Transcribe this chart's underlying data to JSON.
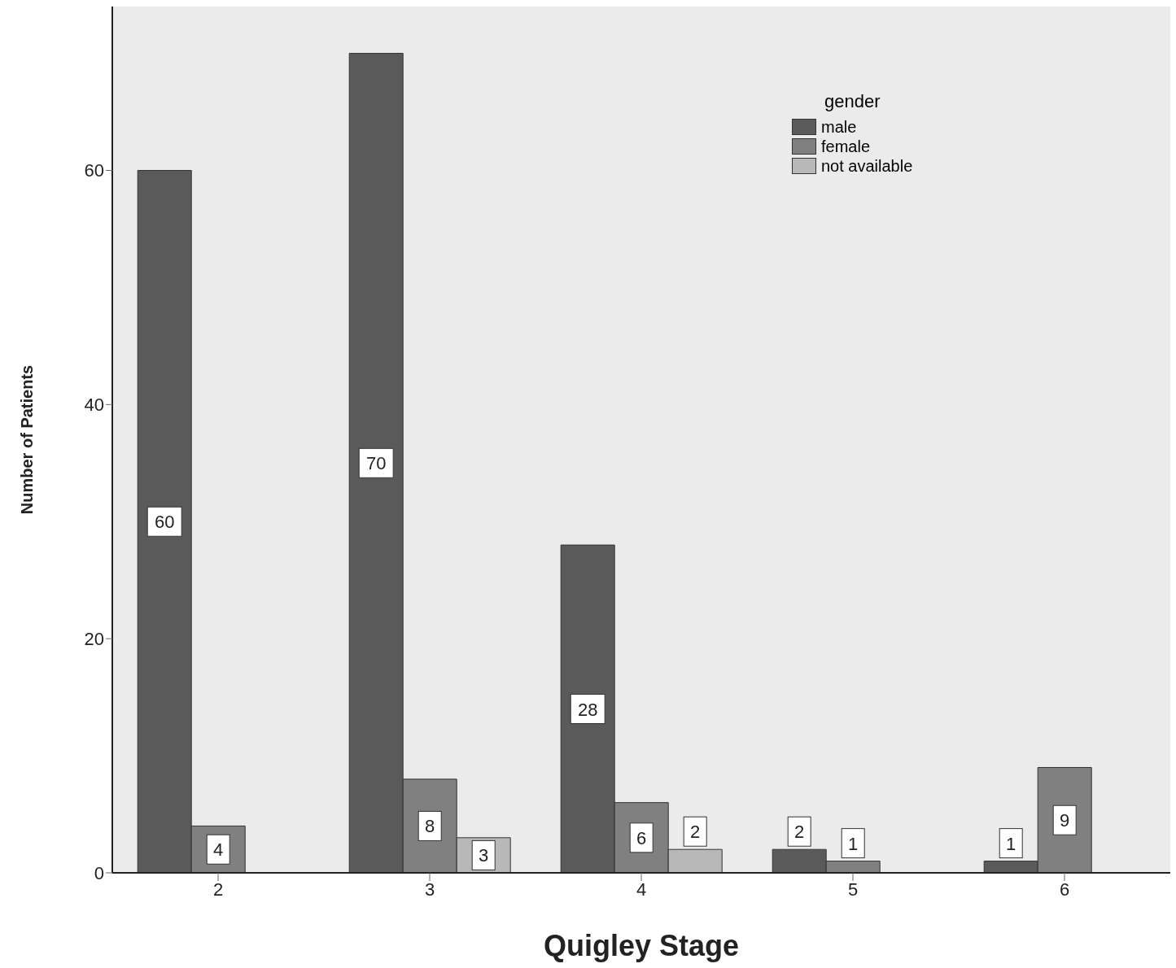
{
  "chart_data": {
    "type": "bar",
    "xlabel": "Quigley Stage",
    "ylabel": "Number of Patients",
    "legend_title": "gender",
    "categories": [
      "2",
      "3",
      "4",
      "5",
      "6"
    ],
    "series": [
      {
        "name": "male",
        "color": "#5a5a5a",
        "values": [
          60,
          70,
          28,
          2,
          1
        ]
      },
      {
        "name": "female",
        "color": "#808080",
        "values": [
          4,
          8,
          6,
          1,
          9
        ]
      },
      {
        "name": "not available",
        "color": "#b8b8b8",
        "values": [
          null,
          3,
          2,
          null,
          null
        ]
      }
    ],
    "ylim": [
      0,
      74
    ],
    "yticks": [
      0,
      20,
      40,
      60
    ],
    "grid": false,
    "legend": "top right",
    "data_labels": true
  }
}
